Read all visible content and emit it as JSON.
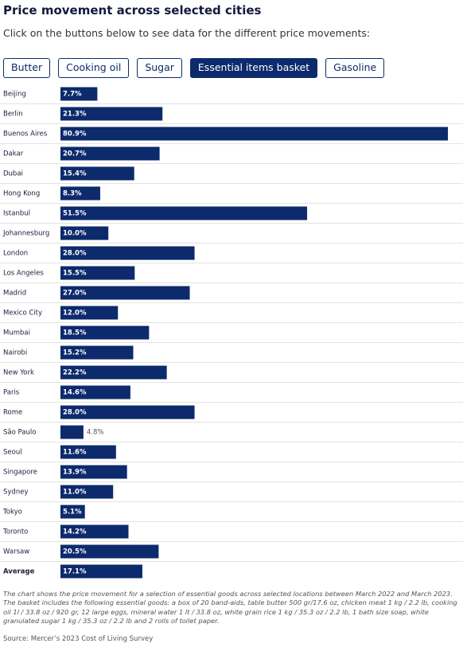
{
  "controls": {
    "buttons": [
      "Butter",
      "Cooking oil",
      "Sugar",
      "Essential items basket",
      "Gasoline"
    ],
    "active": 3
  },
  "chart_data": {
    "type": "bar",
    "orientation": "horizontal",
    "title": "Price movement across selected cities",
    "subtitle": "Click on the buttons below to see data for the different price movements:",
    "categories": [
      "Beijing",
      "Berlin",
      "Buenos Aires",
      "Dakar",
      "Dubai",
      "Hong Kong",
      "Istanbul",
      "Johannesburg",
      "London",
      "Los Angeles",
      "Madrid",
      "Mexico City",
      "Mumbai",
      "Nairobi",
      "New York",
      "Paris",
      "Rome",
      "São Paulo",
      "Seoul",
      "Singapore",
      "Sydney",
      "Tokyo",
      "Toronto",
      "Warsaw",
      "Average"
    ],
    "values": [
      7.7,
      21.3,
      80.9,
      20.7,
      15.4,
      8.3,
      51.5,
      10.0,
      28.0,
      15.5,
      27.0,
      12.0,
      18.5,
      15.2,
      22.2,
      14.6,
      28.0,
      4.8,
      11.6,
      13.9,
      11.0,
      5.1,
      14.2,
      20.5,
      17.1
    ],
    "value_labels": [
      "7.7%",
      "21.3%",
      "80.9%",
      "20.7%",
      "15.4%",
      "8.3%",
      "51.5%",
      "10.0%",
      "28.0%",
      "15.5%",
      "27.0%",
      "12.0%",
      "18.5%",
      "15.2%",
      "22.2%",
      "14.6%",
      "28.0%",
      "4.8%",
      "11.6%",
      "13.9%",
      "11.0%",
      "5.1%",
      "14.2%",
      "20.5%",
      "17.1%"
    ],
    "color": "#0c2a6c",
    "note": "The chart shows the price movement for a selection of essential goods across selected locations between March 2022 and March 2023. The basket includes the following essential goods: a box of 20 band-aids, table butter 500 gr/17.6 oz, chicken meat 1 kg / 2.2 lb, cooking oil 1l / 33.8 oz / 920 gr, 12 large eggs, mineral water 1 lt / 33.8 oz, white grain rice 1 kg / 35.3 oz / 2.2 lb, 1 bath size soap, white granulated sugar 1 kg / 35.3 oz / 2.2 lb and 2 rolls of toilet paper.",
    "source": "Source: Mercer’s 2023 Cost of Living Survey"
  }
}
